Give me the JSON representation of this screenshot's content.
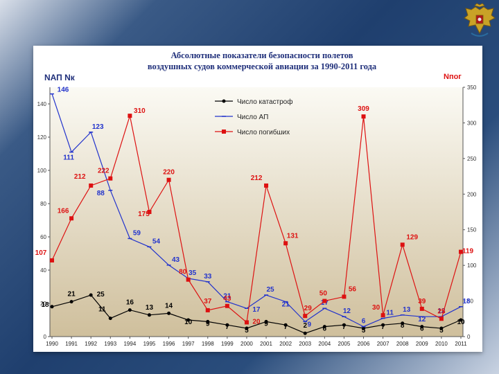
{
  "chart_data": {
    "type": "line",
    "title": "Абсолютные показатели безопасности полетов",
    "subtitle": "воздушных судов коммерческой авиации за 1990-2011 года",
    "left_axis_label": "NАП Nк",
    "right_axis_label": "Nпог",
    "x": [
      "1990",
      "1991",
      "1992",
      "1993",
      "1994",
      "1995",
      "1996",
      "1997",
      "1998",
      "1999",
      "2000",
      "2001",
      "2002",
      "2003",
      "2004",
      "2005",
      "2006",
      "2007",
      "2008",
      "2009",
      "2010",
      "2011"
    ],
    "left_ylim": [
      0,
      150
    ],
    "left_yticks": [
      0,
      20,
      40,
      60,
      80,
      100,
      120,
      140
    ],
    "right_ylim": [
      0,
      350
    ],
    "right_yticks": [
      0,
      50,
      100,
      150,
      200,
      250,
      300,
      350
    ],
    "legend_position": "top-center",
    "grid": false,
    "series": [
      {
        "name": "Число катастроф",
        "axis": "left",
        "color": "#000000",
        "marker": "circle",
        "values": [
          18,
          21,
          25,
          11,
          16,
          13,
          14,
          10,
          9,
          7,
          5,
          9,
          7,
          2,
          6,
          7,
          5,
          7,
          8,
          6,
          5,
          10
        ],
        "labels": [
          "18",
          "21",
          "25",
          "11",
          "16",
          "13",
          "14",
          "10",
          "9",
          "7",
          "5",
          "9",
          "7",
          "2",
          "6",
          "7",
          "5",
          "7",
          "8",
          "6",
          "5",
          "10"
        ]
      },
      {
        "name": "Число АП",
        "axis": "left",
        "color": "#2233cc",
        "marker": "dash",
        "values": [
          146,
          111,
          123,
          88,
          59,
          54,
          43,
          35,
          33,
          21,
          17,
          25,
          21,
          9,
          17,
          12,
          6,
          11,
          13,
          12,
          12,
          18
        ],
        "labels": [
          "146",
          "111",
          "123",
          "88",
          "59",
          "54",
          "43",
          "35",
          "33",
          "21",
          "17",
          "25",
          "21",
          "9",
          "17",
          "12",
          "6",
          "11",
          "13",
          "12",
          "12",
          "18"
        ]
      },
      {
        "name": "Число погибших",
        "axis": "right",
        "color": "#dd1111",
        "marker": "square",
        "values": [
          107,
          166,
          212,
          222,
          310,
          175,
          220,
          80,
          37,
          43,
          20,
          212,
          131,
          29,
          50,
          56,
          309,
          30,
          129,
          39,
          25,
          119
        ],
        "labels": [
          "107",
          "166",
          "212",
          "222",
          "310",
          "175",
          "220",
          "80",
          "37",
          "43",
          "20",
          "212",
          "131",
          "29",
          "50",
          "56",
          "309",
          "30",
          "129",
          "39",
          "25",
          "119"
        ]
      }
    ]
  },
  "colors": {
    "plot_top": "#fbfaf4",
    "plot_bottom": "#cfbf9c",
    "title_color": "#1f2f7a",
    "right_label_color": "#dd1111"
  },
  "emblem": {
    "icon": "double-headed-eagle-emblem-icon"
  }
}
